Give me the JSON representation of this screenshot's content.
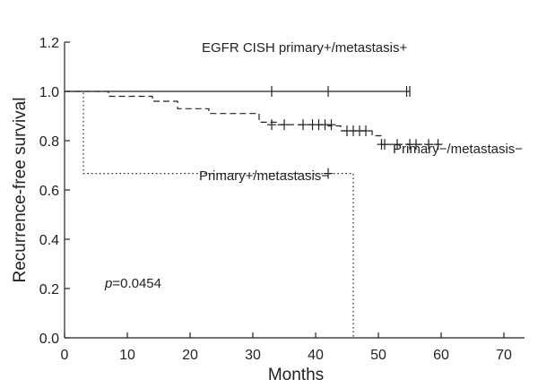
{
  "chart_data": {
    "type": "line",
    "title": "",
    "xlabel": "Months",
    "ylabel": "Recurrence-free survival",
    "xlim": [
      0,
      70
    ],
    "ylim": [
      0,
      1.2
    ],
    "x_ticks": [
      0,
      10,
      20,
      30,
      40,
      50,
      60,
      70
    ],
    "y_ticks": [
      0.0,
      0.2,
      0.4,
      0.6,
      0.8,
      1.0,
      1.2
    ],
    "x_tick_labels": [
      "0",
      "10",
      "20",
      "30",
      "40",
      "50",
      "60",
      "70"
    ],
    "y_tick_labels": [
      "0.0",
      "0.2",
      "0.4",
      "0.6",
      "0.8",
      "1.0",
      "1.2"
    ],
    "grid": false,
    "series": [
      {
        "name": "EGFR CISH primary+/metastasis+",
        "line_style": "solid",
        "steps": [
          [
            0,
            1.0
          ],
          [
            55,
            1.0
          ]
        ],
        "censored": [
          [
            33,
            1.0
          ],
          [
            42,
            1.0
          ],
          [
            54.5,
            1.0
          ],
          [
            55,
            1.0
          ]
        ]
      },
      {
        "name": "Primary−/metastasis−",
        "line_style": "dashed",
        "steps": [
          [
            0,
            1.0
          ],
          [
            7,
            1.0
          ],
          [
            7,
            0.98
          ],
          [
            14,
            0.98
          ],
          [
            14,
            0.96
          ],
          [
            18,
            0.96
          ],
          [
            18,
            0.93
          ],
          [
            23,
            0.93
          ],
          [
            23,
            0.91
          ],
          [
            31,
            0.91
          ],
          [
            31,
            0.875
          ],
          [
            34,
            0.875
          ],
          [
            34,
            0.865
          ],
          [
            42,
            0.865
          ],
          [
            42,
            0.86
          ],
          [
            44,
            0.86
          ],
          [
            44,
            0.84
          ],
          [
            49,
            0.84
          ],
          [
            49,
            0.82
          ],
          [
            50.5,
            0.82
          ],
          [
            50.5,
            0.785
          ],
          [
            60,
            0.785
          ]
        ],
        "censored": [
          [
            33,
            0.865
          ],
          [
            35,
            0.865
          ],
          [
            38,
            0.865
          ],
          [
            39.5,
            0.865
          ],
          [
            40.5,
            0.865
          ],
          [
            41.5,
            0.865
          ],
          [
            42.5,
            0.865
          ],
          [
            45,
            0.84
          ],
          [
            46,
            0.84
          ],
          [
            47,
            0.84
          ],
          [
            48,
            0.84
          ],
          [
            50.5,
            0.785
          ],
          [
            51,
            0.785
          ],
          [
            53,
            0.785
          ],
          [
            55,
            0.785
          ],
          [
            56,
            0.785
          ],
          [
            58,
            0.785
          ],
          [
            59.5,
            0.785
          ]
        ]
      },
      {
        "name": "Primary+/metastasis−",
        "line_style": "dotted",
        "steps": [
          [
            0,
            1.0
          ],
          [
            3,
            1.0
          ],
          [
            3,
            0.667
          ],
          [
            46,
            0.667
          ],
          [
            46,
            0.0
          ]
        ],
        "censored": [
          [
            42,
            0.667
          ]
        ]
      }
    ],
    "annotations": {
      "series1_label": "EGFR CISH primary+/metastasis+",
      "series2_label": "Primary−/metastasis−",
      "series3_label": "Primary+/metastasis−",
      "p_symbol": "p",
      "p_value": "=0.0454"
    }
  }
}
